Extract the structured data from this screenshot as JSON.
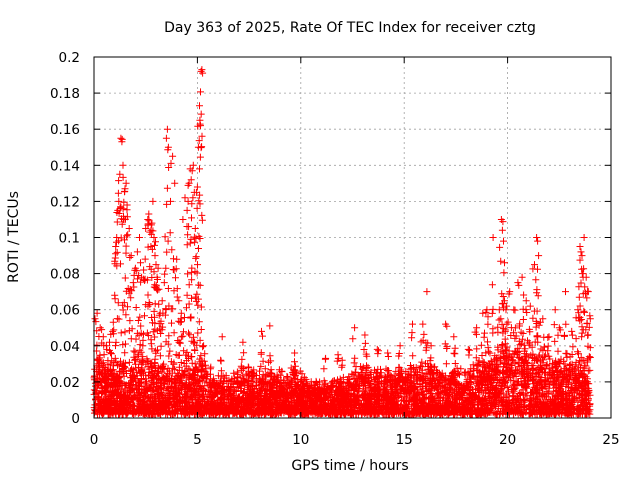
{
  "chart_data": {
    "type": "scatter",
    "title": "Day 363 of 2025, Rate Of TEC Index for receiver cztg",
    "xlabel": "GPS time / hours",
    "ylabel": "ROTI / TECUs",
    "xlim": [
      0,
      25
    ],
    "ylim": [
      0,
      0.2
    ],
    "xticks": [
      "0",
      "5",
      "10",
      "15",
      "20",
      "25"
    ],
    "yticks": [
      "0",
      "0.02",
      "0.04",
      "0.06",
      "0.08",
      "0.1",
      "0.12",
      "0.14",
      "0.16",
      "0.18",
      "0.2"
    ],
    "grid": true,
    "marker": "plus",
    "color": "#ff0000",
    "baseline": [
      [
        0.0,
        0.025
      ],
      [
        0.5,
        0.024
      ],
      [
        1.0,
        0.022
      ],
      [
        1.5,
        0.024
      ],
      [
        2.0,
        0.026
      ],
      [
        2.5,
        0.026
      ],
      [
        3.0,
        0.024
      ],
      [
        3.5,
        0.022
      ],
      [
        4.0,
        0.022
      ],
      [
        4.5,
        0.023
      ],
      [
        5.0,
        0.025
      ],
      [
        5.5,
        0.022
      ],
      [
        6.0,
        0.018
      ],
      [
        6.5,
        0.018
      ],
      [
        7.0,
        0.02
      ],
      [
        7.5,
        0.022
      ],
      [
        8.0,
        0.021
      ],
      [
        8.5,
        0.02
      ],
      [
        9.0,
        0.021
      ],
      [
        9.5,
        0.023
      ],
      [
        10.0,
        0.02
      ],
      [
        10.5,
        0.016
      ],
      [
        11.0,
        0.015
      ],
      [
        11.5,
        0.015
      ],
      [
        12.0,
        0.016
      ],
      [
        12.5,
        0.02
      ],
      [
        13.0,
        0.024
      ],
      [
        13.5,
        0.02
      ],
      [
        14.0,
        0.021
      ],
      [
        14.5,
        0.022
      ],
      [
        15.0,
        0.022
      ],
      [
        15.5,
        0.024
      ],
      [
        16.0,
        0.026
      ],
      [
        16.5,
        0.022
      ],
      [
        17.0,
        0.02
      ],
      [
        17.5,
        0.02
      ],
      [
        18.0,
        0.022
      ],
      [
        18.5,
        0.026
      ],
      [
        19.0,
        0.03
      ],
      [
        19.5,
        0.032
      ],
      [
        20.0,
        0.032
      ],
      [
        20.5,
        0.034
      ],
      [
        21.0,
        0.035
      ],
      [
        21.5,
        0.03
      ],
      [
        22.0,
        0.026
      ],
      [
        22.5,
        0.026
      ],
      [
        23.0,
        0.028
      ],
      [
        23.5,
        0.028
      ],
      [
        24.0,
        0.028
      ]
    ],
    "peaks": [
      [
        0.05,
        0.055
      ],
      [
        0.15,
        0.058
      ],
      [
        0.3,
        0.05
      ],
      [
        0.45,
        0.045
      ],
      [
        0.6,
        0.04
      ],
      [
        0.75,
        0.042
      ],
      [
        0.9,
        0.048
      ],
      [
        1.0,
        0.068
      ],
      [
        1.05,
        0.095
      ],
      [
        1.1,
        0.1
      ],
      [
        1.15,
        0.115
      ],
      [
        1.2,
        0.12
      ],
      [
        1.25,
        0.135
      ],
      [
        1.3,
        0.155
      ],
      [
        1.35,
        0.153
      ],
      [
        1.4,
        0.14
      ],
      [
        1.45,
        0.11
      ],
      [
        1.5,
        0.127
      ],
      [
        1.55,
        0.13
      ],
      [
        1.6,
        0.118
      ],
      [
        1.7,
        0.105
      ],
      [
        1.8,
        0.09
      ],
      [
        1.9,
        0.075
      ],
      [
        2.0,
        0.083
      ],
      [
        2.1,
        0.092
      ],
      [
        2.2,
        0.1
      ],
      [
        2.25,
        0.086
      ],
      [
        2.3,
        0.078
      ],
      [
        2.4,
        0.082
      ],
      [
        2.5,
        0.105
      ],
      [
        2.6,
        0.11
      ],
      [
        2.65,
        0.113
      ],
      [
        2.7,
        0.103
      ],
      [
        2.75,
        0.095
      ],
      [
        2.8,
        0.108
      ],
      [
        2.85,
        0.12
      ],
      [
        2.9,
        0.1
      ],
      [
        2.95,
        0.09
      ],
      [
        3.0,
        0.085
      ],
      [
        3.05,
        0.078
      ],
      [
        3.1,
        0.083
      ],
      [
        3.2,
        0.058
      ],
      [
        3.3,
        0.065
      ],
      [
        3.4,
        0.075
      ],
      [
        3.5,
        0.155
      ],
      [
        3.55,
        0.16
      ],
      [
        3.6,
        0.15
      ],
      [
        3.7,
        0.12
      ],
      [
        3.8,
        0.145
      ],
      [
        3.9,
        0.13
      ],
      [
        4.0,
        0.088
      ],
      [
        4.1,
        0.065
      ],
      [
        4.2,
        0.055
      ],
      [
        4.3,
        0.11
      ],
      [
        4.4,
        0.122
      ],
      [
        4.5,
        0.115
      ],
      [
        4.55,
        0.12
      ],
      [
        4.6,
        0.13
      ],
      [
        4.65,
        0.138
      ],
      [
        4.7,
        0.132
      ],
      [
        4.75,
        0.137
      ],
      [
        4.8,
        0.14
      ],
      [
        4.85,
        0.125
      ],
      [
        4.9,
        0.105
      ],
      [
        4.95,
        0.125
      ],
      [
        5.0,
        0.128
      ],
      [
        5.05,
        0.15
      ],
      [
        5.1,
        0.173
      ],
      [
        5.12,
        0.165
      ],
      [
        5.15,
        0.162
      ],
      [
        5.18,
        0.192
      ],
      [
        5.22,
        0.193
      ],
      [
        5.3,
        0.04
      ],
      [
        6.2,
        0.045
      ],
      [
        7.2,
        0.042
      ],
      [
        8.1,
        0.048
      ],
      [
        8.5,
        0.051
      ],
      [
        9.7,
        0.036
      ],
      [
        11.2,
        0.033
      ],
      [
        11.8,
        0.035
      ],
      [
        12.0,
        0.032
      ],
      [
        12.6,
        0.05
      ],
      [
        13.1,
        0.046
      ],
      [
        13.7,
        0.038
      ],
      [
        14.2,
        0.036
      ],
      [
        14.8,
        0.04
      ],
      [
        15.4,
        0.052
      ],
      [
        15.9,
        0.052
      ],
      [
        16.1,
        0.07
      ],
      [
        16.3,
        0.04
      ],
      [
        17.0,
        0.052
      ],
      [
        17.4,
        0.045
      ],
      [
        18.1,
        0.038
      ],
      [
        18.5,
        0.05
      ],
      [
        18.8,
        0.058
      ],
      [
        19.0,
        0.06
      ],
      [
        19.3,
        0.1
      ],
      [
        19.6,
        0.06
      ],
      [
        19.7,
        0.11
      ],
      [
        19.75,
        0.104
      ],
      [
        19.8,
        0.098
      ],
      [
        19.85,
        0.065
      ],
      [
        19.95,
        0.062
      ],
      [
        20.1,
        0.07
      ],
      [
        20.3,
        0.06
      ],
      [
        20.5,
        0.075
      ],
      [
        20.7,
        0.078
      ],
      [
        20.9,
        0.065
      ],
      [
        21.1,
        0.062
      ],
      [
        21.3,
        0.085
      ],
      [
        21.4,
        0.1
      ],
      [
        21.45,
        0.098
      ],
      [
        21.5,
        0.09
      ],
      [
        21.7,
        0.055
      ],
      [
        22.0,
        0.045
      ],
      [
        22.3,
        0.06
      ],
      [
        22.5,
        0.05
      ],
      [
        22.8,
        0.07
      ],
      [
        23.1,
        0.048
      ],
      [
        23.4,
        0.06
      ],
      [
        23.5,
        0.095
      ],
      [
        23.55,
        0.092
      ],
      [
        23.6,
        0.09
      ],
      [
        23.65,
        0.08
      ],
      [
        23.7,
        0.1
      ],
      [
        23.8,
        0.078
      ],
      [
        23.9,
        0.07
      ],
      [
        24.0,
        0.055
      ]
    ]
  }
}
